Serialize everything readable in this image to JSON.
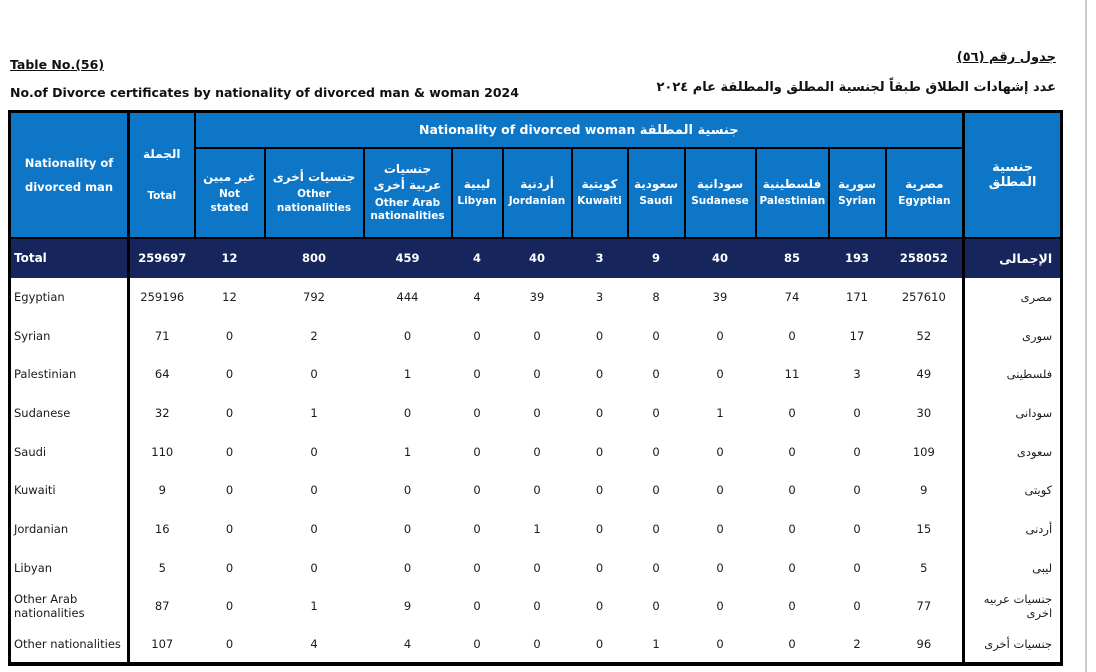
{
  "page": {
    "title_en": "Table  No.(56)",
    "subtitle_en": "No.of  Divorce certificates by nationality of divorced man & woman 2024",
    "title_ar": "جدول رقم (٥٦)",
    "subtitle_ar": "عدد إشهادات الطلاق طبقاً لجنسية المطلق والمطلقة عام  ٢٠٢٤"
  },
  "table": {
    "man_col_header_en": "Nationality of divorced man",
    "man_col_header_ar": "جنسية المطلق",
    "total_col_ar": "الجملة",
    "total_col_en": "Total",
    "woman_group_header_en": "Nationality of divorced  woman",
    "woman_group_header_ar": "جنسية المطلقة",
    "colors": {
      "header_blue": "#0e76c6",
      "total_navy": "#16265c",
      "border": "#000000"
    },
    "columns": [
      {
        "ar": "غير مبين",
        "en": "Not stated"
      },
      {
        "ar": "جنسيات أخرى",
        "en": "Other nationalities"
      },
      {
        "ar": "جنسيات عربية أخرى",
        "en": "Other Arab nationalities"
      },
      {
        "ar": "ليبية",
        "en": "Libyan"
      },
      {
        "ar": "أردنية",
        "en": "Jordanian"
      },
      {
        "ar": "كويتية",
        "en": "Kuwaiti"
      },
      {
        "ar": "سعودية",
        "en": "Saudi"
      },
      {
        "ar": "سودانية",
        "en": "Sudanese"
      },
      {
        "ar": "فلسطينية",
        "en": "Palestinian"
      },
      {
        "ar": "سورية",
        "en": "Syrian"
      },
      {
        "ar": "مصرية",
        "en": "Egyptian"
      }
    ],
    "total_row": {
      "label_en": "Total",
      "label_ar": "الإجمالى",
      "total": "259697",
      "values": [
        "12",
        "800",
        "459",
        "4",
        "40",
        "3",
        "9",
        "40",
        "85",
        "193",
        "258052"
      ]
    },
    "rows": [
      {
        "label_en": "Egyptian",
        "label_ar": "مصرى",
        "total": "259196",
        "values": [
          "12",
          "792",
          "444",
          "4",
          "39",
          "3",
          "8",
          "39",
          "74",
          "171",
          "257610"
        ]
      },
      {
        "label_en": "Syrian",
        "label_ar": "سورى",
        "total": "71",
        "values": [
          "0",
          "2",
          "0",
          "0",
          "0",
          "0",
          "0",
          "0",
          "0",
          "17",
          "52"
        ]
      },
      {
        "label_en": "Palestinian",
        "label_ar": "فلسطينى",
        "total": "64",
        "values": [
          "0",
          "0",
          "1",
          "0",
          "0",
          "0",
          "0",
          "0",
          "11",
          "3",
          "49"
        ]
      },
      {
        "label_en": "Sudanese",
        "label_ar": "سودانى",
        "total": "32",
        "values": [
          "0",
          "1",
          "0",
          "0",
          "0",
          "0",
          "0",
          "1",
          "0",
          "0",
          "30"
        ]
      },
      {
        "label_en": "Saudi",
        "label_ar": "سعودى",
        "total": "110",
        "values": [
          "0",
          "0",
          "1",
          "0",
          "0",
          "0",
          "0",
          "0",
          "0",
          "0",
          "109"
        ]
      },
      {
        "label_en": "Kuwaiti",
        "label_ar": "كويتى",
        "total": "9",
        "values": [
          "0",
          "0",
          "0",
          "0",
          "0",
          "0",
          "0",
          "0",
          "0",
          "0",
          "9"
        ]
      },
      {
        "label_en": "Jordanian",
        "label_ar": "أردنى",
        "total": "16",
        "values": [
          "0",
          "0",
          "0",
          "0",
          "1",
          "0",
          "0",
          "0",
          "0",
          "0",
          "15"
        ]
      },
      {
        "label_en": "Libyan",
        "label_ar": "ليبى",
        "total": "5",
        "values": [
          "0",
          "0",
          "0",
          "0",
          "0",
          "0",
          "0",
          "0",
          "0",
          "0",
          "5"
        ]
      },
      {
        "label_en": "Other Arab nationalities",
        "label_ar": "جنسيات عربيه اخرى",
        "total": "87",
        "values": [
          "0",
          "1",
          "9",
          "0",
          "0",
          "0",
          "0",
          "0",
          "0",
          "0",
          "77"
        ]
      },
      {
        "label_en": "Other nationalities",
        "label_ar": "جنسيات أخرى",
        "total": "107",
        "values": [
          "0",
          "4",
          "4",
          "0",
          "0",
          "0",
          "1",
          "0",
          "0",
          "2",
          "96"
        ]
      }
    ]
  }
}
